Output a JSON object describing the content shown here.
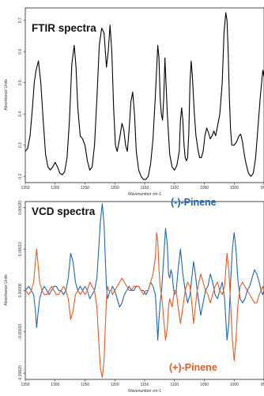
{
  "chart_data": [
    {
      "type": "line",
      "title": "FTIR spectra",
      "xlabel": "Wavenumber cm-1",
      "ylabel": "Absorbance Units",
      "xlim": [
        1350,
        950
      ],
      "x_reversed": true,
      "ylim": [
        0.18,
        0.74
      ],
      "xticks": [
        1350,
        1300,
        1250,
        1200,
        1150,
        1100,
        1050,
        1000,
        950
      ],
      "yticks": [
        "0.2",
        "0.3",
        "0.4",
        "0.5",
        "0.6",
        "0.7"
      ],
      "ytick_values": [
        0.2,
        0.3,
        0.4,
        0.5,
        0.6,
        0.7
      ],
      "series": [
        {
          "name": "",
          "color": "#000000",
          "x": [
            1350,
            1346,
            1342,
            1338,
            1335,
            1332,
            1328,
            1324,
            1320,
            1316,
            1312,
            1308,
            1304,
            1300,
            1296,
            1292,
            1288,
            1284,
            1280,
            1276,
            1272,
            1268,
            1265,
            1262,
            1258,
            1254,
            1250,
            1246,
            1242,
            1238,
            1234,
            1230,
            1226,
            1222,
            1218,
            1214,
            1211,
            1208,
            1205,
            1202,
            1199,
            1196,
            1192,
            1188,
            1185,
            1182,
            1179,
            1176,
            1173,
            1170,
            1167,
            1164,
            1160,
            1156,
            1152,
            1148,
            1144,
            1140,
            1136,
            1132,
            1128,
            1126,
            1124,
            1122,
            1120,
            1118,
            1116,
            1112,
            1108,
            1104,
            1100,
            1096,
            1092,
            1090,
            1088,
            1086,
            1084,
            1082,
            1080,
            1078,
            1076,
            1074,
            1072,
            1070,
            1067,
            1064,
            1061,
            1058,
            1055,
            1052,
            1049,
            1046,
            1043,
            1040,
            1037,
            1034,
            1031,
            1028,
            1024,
            1020,
            1017,
            1014,
            1012,
            1010,
            1008,
            1006,
            1004,
            1000,
            996,
            992,
            989,
            986,
            983,
            980,
            976,
            972,
            968,
            964,
            960,
            956,
            952,
            950
          ],
          "y": [
            0.28,
            0.29,
            0.33,
            0.42,
            0.5,
            0.54,
            0.57,
            0.5,
            0.38,
            0.27,
            0.23,
            0.22,
            0.23,
            0.245,
            0.23,
            0.21,
            0.205,
            0.215,
            0.26,
            0.38,
            0.56,
            0.62,
            0.55,
            0.42,
            0.33,
            0.32,
            0.3,
            0.25,
            0.22,
            0.23,
            0.3,
            0.45,
            0.62,
            0.675,
            0.66,
            0.55,
            0.6,
            0.685,
            0.6,
            0.42,
            0.3,
            0.28,
            0.32,
            0.37,
            0.35,
            0.3,
            0.28,
            0.35,
            0.44,
            0.47,
            0.4,
            0.28,
            0.22,
            0.2,
            0.19,
            0.19,
            0.2,
            0.24,
            0.32,
            0.46,
            0.62,
            0.58,
            0.45,
            0.4,
            0.38,
            0.45,
            0.58,
            0.4,
            0.27,
            0.23,
            0.22,
            0.235,
            0.28,
            0.38,
            0.42,
            0.38,
            0.3,
            0.26,
            0.25,
            0.26,
            0.34,
            0.5,
            0.57,
            0.52,
            0.41,
            0.33,
            0.29,
            0.26,
            0.26,
            0.28,
            0.33,
            0.355,
            0.34,
            0.32,
            0.33,
            0.345,
            0.33,
            0.36,
            0.4,
            0.5,
            0.66,
            0.725,
            0.7,
            0.6,
            0.45,
            0.35,
            0.3,
            0.3,
            0.31,
            0.33,
            0.335,
            0.31,
            0.27,
            0.24,
            0.21,
            0.2,
            0.21,
            0.26,
            0.36,
            0.46,
            0.54,
            0.52
          ]
        }
      ]
    },
    {
      "type": "line",
      "title": "VCD spectra",
      "xlabel": "Wavenumber cm-1",
      "ylabel": "Absorbance Units",
      "xlim": [
        1350,
        950
      ],
      "x_reversed": true,
      "ylim": [
        -0.000215,
        0.000215
      ],
      "xticks": [
        1350,
        1300,
        1250,
        1200,
        1150,
        1100,
        1050,
        1000,
        950
      ],
      "yticks": [
        "0.00020",
        "0.00010",
        "0.00000",
        "-0.00010",
        "-0.00020"
      ],
      "ytick_values": [
        0.0002,
        0.0001,
        0.0,
        -0.0001,
        -0.0002
      ],
      "series": [
        {
          "name": "(-)-Pinene",
          "color": "#1f66b4",
          "x": [
            1350,
            1344,
            1340,
            1336,
            1333,
            1331,
            1329,
            1326,
            1322,
            1318,
            1314,
            1310,
            1306,
            1302,
            1298,
            1294,
            1290,
            1286,
            1282,
            1278,
            1274,
            1270,
            1266,
            1262,
            1258,
            1254,
            1250,
            1246,
            1242,
            1238,
            1234,
            1230,
            1227,
            1224,
            1221,
            1218,
            1216,
            1214,
            1212,
            1210,
            1208,
            1206,
            1204,
            1200,
            1196,
            1192,
            1188,
            1184,
            1180,
            1176,
            1172,
            1168,
            1164,
            1160,
            1156,
            1152,
            1148,
            1144,
            1140,
            1136,
            1132,
            1130,
            1128,
            1126,
            1124,
            1121,
            1118,
            1115,
            1112,
            1110,
            1108,
            1106,
            1104,
            1102,
            1100,
            1097,
            1094,
            1090,
            1086,
            1082,
            1078,
            1074,
            1071,
            1068,
            1065,
            1062,
            1059,
            1056,
            1052,
            1048,
            1044,
            1040,
            1036,
            1032,
            1028,
            1024,
            1020,
            1016,
            1012,
            1009,
            1006,
            1003,
            1000,
            997,
            994,
            990,
            986,
            982,
            978,
            974,
            970,
            966,
            962,
            958,
            955,
            952,
            950
          ],
          "y": [
            0.0,
            1e-05,
            0.0,
            -1e-05,
            -5e-05,
            -9e-05,
            -6e-05,
            -2e-05,
            0.0,
            1e-05,
            0.0,
            -1e-05,
            0.0,
            1e-05,
            1e-05,
            0.0,
            0.0,
            -1e-05,
            0.0,
            3e-05,
            9e-05,
            7e-05,
            2e-05,
            0.0,
            1e-05,
            0.0,
            1e-05,
            0.0,
            -2e-05,
            -1e-05,
            0.0,
            3e-05,
            0.0001,
            0.00017,
            0.00021,
            0.00016,
            8e-05,
            1e-05,
            -2e-05,
            -1e-05,
            0.0,
            0.0,
            1e-05,
            0.0,
            -2e-05,
            -4e-05,
            -3e-05,
            -1e-05,
            0.0,
            1e-05,
            0.0,
            0.0,
            1e-05,
            1e-05,
            0.0,
            0.0,
            -1e-05,
            0.0,
            2e-05,
            1e-05,
            -1e-05,
            -6e-05,
            -0.00012,
            -7e-05,
            -3e-05,
            1e-05,
            8e-05,
            0.00015,
            0.00011,
            4e-05,
            3e-05,
            5e-05,
            4e-05,
            1e-05,
            -1e-05,
            0.0,
            5e-05,
            0.0001,
            4e-05,
            0.0,
            -3e-05,
            -1e-05,
            3e-05,
            7e-05,
            4e-05,
            0.0,
            -3e-05,
            -6e-05,
            -3e-05,
            0.0,
            1e-05,
            4e-05,
            2e-05,
            -1e-05,
            -2e-05,
            0.0,
            2e-05,
            -2e-05,
            -0.00012,
            -8e-05,
            2e-05,
            0.0001,
            0.00014,
            0.0001,
            3e-05,
            -2e-05,
            -3e-05,
            -2e-05,
            0.0,
            1e-05,
            3e-05,
            5e-05,
            4e-05,
            2e-05,
            0.0,
            -1e-05,
            0.0
          ]
        },
        {
          "name": "(+)-Pinene",
          "color": "#e85a24",
          "x": [
            1350,
            1344,
            1340,
            1336,
            1333,
            1331,
            1329,
            1326,
            1322,
            1318,
            1314,
            1310,
            1306,
            1302,
            1298,
            1294,
            1290,
            1286,
            1282,
            1278,
            1274,
            1270,
            1266,
            1262,
            1258,
            1254,
            1250,
            1246,
            1242,
            1238,
            1234,
            1230,
            1227,
            1224,
            1221,
            1218,
            1216,
            1214,
            1212,
            1210,
            1208,
            1206,
            1204,
            1200,
            1196,
            1192,
            1188,
            1184,
            1180,
            1176,
            1172,
            1168,
            1164,
            1160,
            1156,
            1152,
            1148,
            1144,
            1140,
            1136,
            1132,
            1130,
            1128,
            1126,
            1124,
            1121,
            1118,
            1115,
            1112,
            1110,
            1108,
            1106,
            1104,
            1102,
            1100,
            1097,
            1094,
            1090,
            1086,
            1082,
            1078,
            1074,
            1071,
            1068,
            1065,
            1062,
            1059,
            1056,
            1052,
            1048,
            1044,
            1040,
            1036,
            1032,
            1028,
            1024,
            1020,
            1016,
            1012,
            1009,
            1006,
            1003,
            1000,
            997,
            994,
            990,
            986,
            982,
            978,
            974,
            970,
            966,
            962,
            958,
            955,
            952,
            950
          ],
          "y": [
            0.0,
            -1e-05,
            0.0,
            2e-05,
            7e-05,
            0.0001,
            7e-05,
            2e-05,
            0.0,
            -1e-05,
            -1e-05,
            0.0,
            1e-05,
            0.0,
            -1e-05,
            -1e-05,
            0.0,
            1e-05,
            0.0,
            -2e-05,
            -7e-05,
            -5e-05,
            -1e-05,
            0.0,
            -1e-05,
            0.0,
            -1e-05,
            0.0,
            2e-05,
            1e-05,
            0.0,
            -4e-05,
            -0.00012,
            -0.00019,
            -0.00021,
            -0.00017,
            -9e-05,
            -2e-05,
            1e-05,
            0.0,
            0.0,
            0.0,
            -1e-05,
            0.0,
            1e-05,
            2e-05,
            3e-05,
            2e-05,
            1e-05,
            0.0,
            0.0,
            1e-05,
            1e-05,
            1e-05,
            0.0,
            -1e-05,
            0.0,
            0.0,
            2e-05,
            4e-05,
            8e-05,
            0.00014,
            0.00012,
            5e-05,
            1e-05,
            -2e-05,
            -7e-05,
            -0.00012,
            -9e-05,
            -4e-05,
            -2e-05,
            -3e-05,
            -4e-05,
            -2e-05,
            0.0,
            0.0,
            -4e-05,
            -8e-05,
            -4e-05,
            0.0,
            2e-05,
            1e-05,
            -3e-05,
            -8e-05,
            -4e-05,
            0.0,
            2e-05,
            4e-05,
            2e-05,
            0.0,
            -1e-05,
            -3e-05,
            -1e-05,
            1e-05,
            2e-05,
            0.0,
            -1e-05,
            1e-05,
            9e-05,
            5e-05,
            -3e-05,
            -0.00012,
            -0.00017,
            -0.00012,
            -4e-05,
            1e-05,
            2e-05,
            1e-05,
            0.0,
            -1e-05,
            -2e-05,
            -3e-05,
            -3e-05,
            -1e-05,
            0.0,
            1e-05,
            0.0
          ]
        }
      ]
    }
  ]
}
